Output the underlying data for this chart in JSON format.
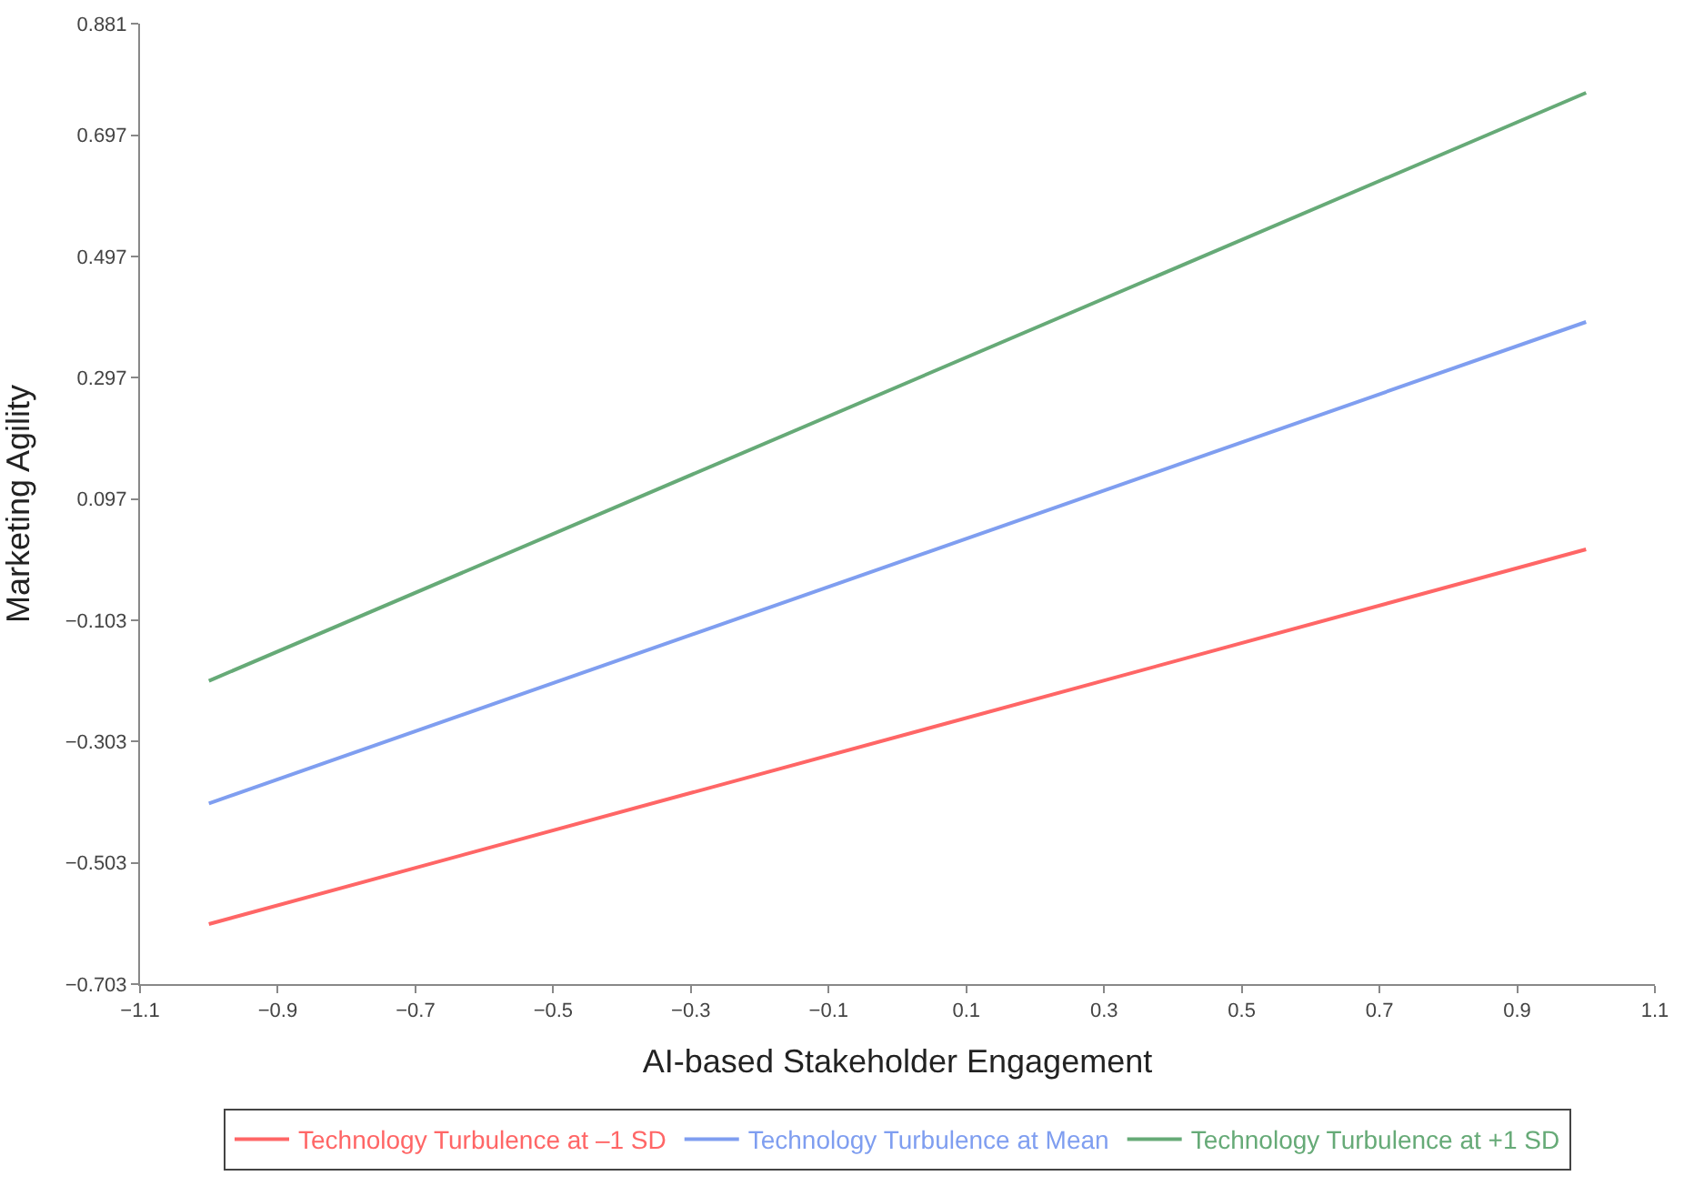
{
  "chart_data": {
    "type": "line",
    "xlabel": "AI-based Stakeholder Engagement",
    "ylabel": "Marketing Agility",
    "x": [
      -1,
      1
    ],
    "series": [
      {
        "name": "Technology Turbulence at –1 SD",
        "color": "#ff6666",
        "values": [
          -0.604,
          0.014
        ]
      },
      {
        "name": "Technology Turbulence at Mean",
        "color": "#7f9ef0",
        "values": [
          -0.405,
          0.389
        ]
      },
      {
        "name": "Technology Turbulence at +1 SD",
        "color": "#66aa77",
        "values": [
          -0.203,
          0.767
        ]
      }
    ],
    "xlim": [
      -1.1,
      1.1
    ],
    "xticks": [
      -1.1,
      -0.9,
      -0.7,
      -0.5,
      -0.3,
      -0.1,
      0.1,
      0.3,
      0.5,
      0.7,
      0.9,
      1.1
    ],
    "ylim": [
      -0.703,
      0.881
    ],
    "yticks": [
      -0.703,
      -0.503,
      -0.303,
      -0.103,
      0.097,
      0.297,
      0.497,
      0.697,
      0.881
    ],
    "legend": "bottom",
    "marker": "none",
    "line_style": "solid"
  }
}
